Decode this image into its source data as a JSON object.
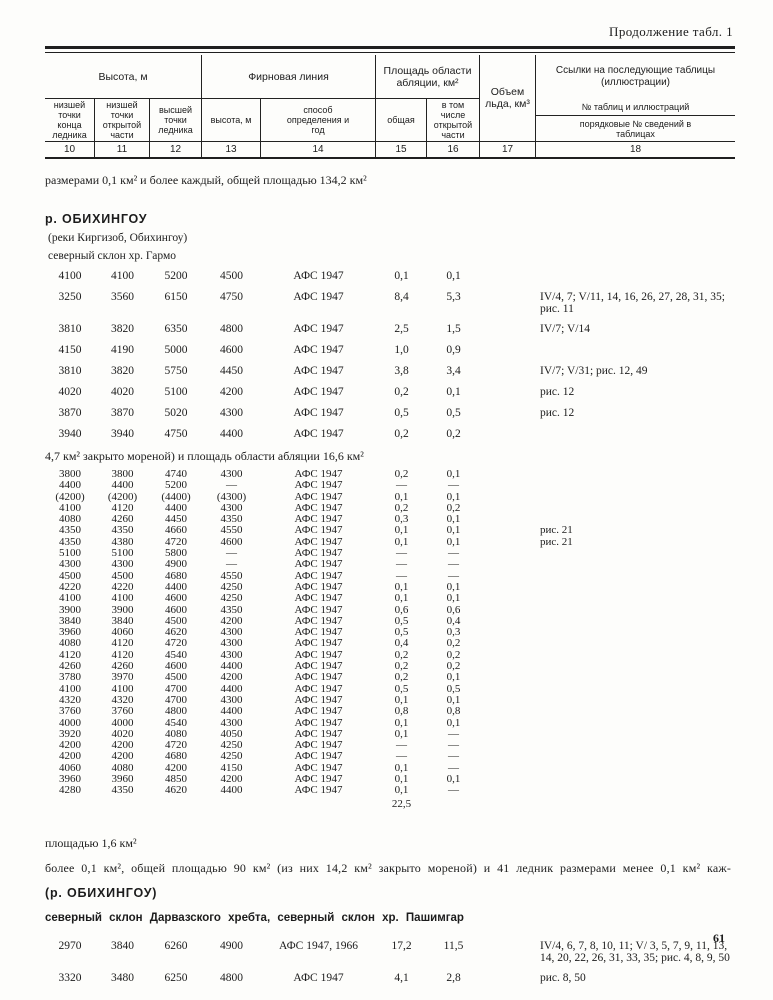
{
  "meta": {
    "continuation_label": "Продолжение табл. 1",
    "page_number": "61"
  },
  "header": {
    "groups": {
      "height": "Высота, м",
      "firn_line": "Фирновая линия",
      "ablation_area": "Площадь области абляции, км²",
      "ice_volume": "Объем льда, км³",
      "references": "Ссылки на последующие таблицы (иллюстрации)",
      "references_sub1": "№ таблиц и иллюстраций",
      "references_sub2": "порядковые № сведений в таблицах"
    },
    "subcolumns": [
      {
        "label": "низшей точки конца ледника"
      },
      {
        "label": "низшей точки открытой части"
      },
      {
        "label": "высшей точки ледника"
      },
      {
        "label": "высота, м"
      },
      {
        "label": "способ определения и год"
      },
      {
        "label": "общая"
      },
      {
        "label": "в том числе открытой части"
      }
    ],
    "column_numbers": [
      "10",
      "11",
      "12",
      "13",
      "14",
      "15",
      "16",
      "17",
      "18"
    ]
  },
  "body": [
    {
      "type": "text",
      "text": "размерами 0,1 км² и более каждый, общей площадью 134,2 км²"
    },
    {
      "type": "heading",
      "text": "р. ОБИХИНГОУ"
    },
    {
      "type": "subtext",
      "text": "(реки Киргизоб, Обихингоу)"
    },
    {
      "type": "subtext",
      "text": "северный склон хр. Гармо"
    },
    {
      "type": "row",
      "spacing": "wide",
      "cells": [
        "4100",
        "4100",
        "5200",
        "4500",
        "АФС 1947",
        "0,1",
        "0,1"
      ],
      "refs": ""
    },
    {
      "type": "row",
      "spacing": "wide",
      "cells": [
        "3250",
        "3560",
        "6150",
        "4750",
        "АФС 1947",
        "8,4",
        "5,3"
      ],
      "refs": "IV/4, 7; V/11, 14, 16, 26, 27, 28, 31, 35; рис. 11"
    },
    {
      "type": "row",
      "spacing": "wide",
      "cells": [
        "3810",
        "3820",
        "6350",
        "4800",
        "АФС 1947",
        "2,5",
        "1,5"
      ],
      "refs": "IV/7; V/14"
    },
    {
      "type": "row",
      "spacing": "wide",
      "cells": [
        "4150",
        "4190",
        "5000",
        "4600",
        "АФС 1947",
        "1,0",
        "0,9"
      ],
      "refs": ""
    },
    {
      "type": "row",
      "spacing": "wide",
      "cells": [
        "3810",
        "3820",
        "5750",
        "4450",
        "АФС 1947",
        "3,8",
        "3,4"
      ],
      "refs": "IV/7; V/31; рис. 12, 49"
    },
    {
      "type": "row",
      "spacing": "wide",
      "cells": [
        "4020",
        "4020",
        "5100",
        "4200",
        "АФС 1947",
        "0,2",
        "0,1"
      ],
      "refs": "рис. 12"
    },
    {
      "type": "row",
      "spacing": "wide",
      "cells": [
        "3870",
        "3870",
        "5020",
        "4300",
        "АФС 1947",
        "0,5",
        "0,5"
      ],
      "refs": "рис. 12"
    },
    {
      "type": "row",
      "spacing": "wide",
      "cells": [
        "3940",
        "3940",
        "4750",
        "4400",
        "АФС 1947",
        "0,2",
        "0,2"
      ],
      "refs": ""
    },
    {
      "type": "text",
      "text": "4,7 км² закрыто мореной) и площадь области абляции 16,6 км²"
    },
    {
      "type": "row",
      "spacing": "tight",
      "cells": [
        "3800",
        "3800",
        "4740",
        "4300",
        "АФС 1947",
        "0,2",
        "0,1"
      ],
      "refs": ""
    },
    {
      "type": "row",
      "spacing": "tight",
      "cells": [
        "4400",
        "4400",
        "5200",
        "—",
        "АФС 1947",
        "—",
        "—"
      ],
      "refs": ""
    },
    {
      "type": "row",
      "spacing": "tight",
      "cells": [
        "(4200)",
        "(4200)",
        "(4400)",
        "(4300)",
        "АФС 1947",
        "0,1",
        "0,1"
      ],
      "refs": ""
    },
    {
      "type": "row",
      "spacing": "tight",
      "cells": [
        "4100",
        "4120",
        "4400",
        "4300",
        "АФС 1947",
        "0,2",
        "0,2"
      ],
      "refs": ""
    },
    {
      "type": "row",
      "spacing": "tight",
      "cells": [
        "4080",
        "4260",
        "4450",
        "4350",
        "АФС 1947",
        "0,3",
        "0,1"
      ],
      "refs": ""
    },
    {
      "type": "row",
      "spacing": "tight",
      "cells": [
        "4350",
        "4350",
        "4660",
        "4550",
        "АФС 1947",
        "0,1",
        "0,1"
      ],
      "refs": "рис. 21"
    },
    {
      "type": "row",
      "spacing": "tight",
      "cells": [
        "4350",
        "4380",
        "4720",
        "4600",
        "АФС 1947",
        "0,1",
        "0,1"
      ],
      "refs": "рис. 21"
    },
    {
      "type": "row",
      "spacing": "tight",
      "cells": [
        "5100",
        "5100",
        "5800",
        "—",
        "АФС 1947",
        "—",
        "—"
      ],
      "refs": ""
    },
    {
      "type": "row",
      "spacing": "tight",
      "cells": [
        "4300",
        "4300",
        "4900",
        "—",
        "АФС 1947",
        "—",
        "—"
      ],
      "refs": ""
    },
    {
      "type": "row",
      "spacing": "tight",
      "cells": [
        "4500",
        "4500",
        "4680",
        "4550",
        "АФС 1947",
        "—",
        "—"
      ],
      "refs": ""
    },
    {
      "type": "row",
      "spacing": "tight",
      "cells": [
        "4220",
        "4220",
        "4400",
        "4250",
        "АФС 1947",
        "0,1",
        "0,1"
      ],
      "refs": ""
    },
    {
      "type": "row",
      "spacing": "tight",
      "cells": [
        "4100",
        "4100",
        "4600",
        "4250",
        "АФС 1947",
        "0,1",
        "0,1"
      ],
      "refs": ""
    },
    {
      "type": "row",
      "spacing": "tight",
      "cells": [
        "3900",
        "3900",
        "4600",
        "4350",
        "АФС 1947",
        "0,6",
        "0,6"
      ],
      "refs": ""
    },
    {
      "type": "row",
      "spacing": "tight",
      "cells": [
        "3840",
        "3840",
        "4500",
        "4200",
        "АФС 1947",
        "0,5",
        "0,4"
      ],
      "refs": ""
    },
    {
      "type": "row",
      "spacing": "tight",
      "cells": [
        "3960",
        "4060",
        "4620",
        "4300",
        "АФС 1947",
        "0,5",
        "0,3"
      ],
      "refs": ""
    },
    {
      "type": "row",
      "spacing": "tight",
      "cells": [
        "4080",
        "4120",
        "4720",
        "4300",
        "АФС 1947",
        "0,4",
        "0,2"
      ],
      "refs": ""
    },
    {
      "type": "row",
      "spacing": "tight",
      "cells": [
        "4120",
        "4120",
        "4540",
        "4300",
        "АФС 1947",
        "0,2",
        "0,2"
      ],
      "refs": ""
    },
    {
      "type": "row",
      "spacing": "tight",
      "cells": [
        "4260",
        "4260",
        "4600",
        "4400",
        "АФС 1947",
        "0,2",
        "0,2"
      ],
      "refs": ""
    },
    {
      "type": "row",
      "spacing": "tight",
      "cells": [
        "3780",
        "3970",
        "4500",
        "4200",
        "АФС 1947",
        "0,2",
        "0,1"
      ],
      "refs": ""
    },
    {
      "type": "row",
      "spacing": "tight",
      "cells": [
        "4100",
        "4100",
        "4700",
        "4400",
        "АФС 1947",
        "0,5",
        "0,5"
      ],
      "refs": ""
    },
    {
      "type": "row",
      "spacing": "tight",
      "cells": [
        "4320",
        "4320",
        "4700",
        "4300",
        "АФС 1947",
        "0,1",
        "0,1"
      ],
      "refs": ""
    },
    {
      "type": "row",
      "spacing": "tight",
      "cells": [
        "3760",
        "3760",
        "4800",
        "4400",
        "АФС 1947",
        "0,8",
        "0,8"
      ],
      "refs": ""
    },
    {
      "type": "row",
      "spacing": "tight",
      "cells": [
        "4000",
        "4000",
        "4540",
        "4300",
        "АФС 1947",
        "0,1",
        "0,1"
      ],
      "refs": ""
    },
    {
      "type": "row",
      "spacing": "tight",
      "cells": [
        "3920",
        "4020",
        "4080",
        "4050",
        "АФС 1947",
        "0,1",
        "—"
      ],
      "refs": ""
    },
    {
      "type": "row",
      "spacing": "tight",
      "cells": [
        "4200",
        "4200",
        "4720",
        "4250",
        "АФС 1947",
        "—",
        "—"
      ],
      "refs": ""
    },
    {
      "type": "row",
      "spacing": "tight",
      "cells": [
        "4200",
        "4200",
        "4680",
        "4250",
        "АФС 1947",
        "—",
        "—"
      ],
      "refs": ""
    },
    {
      "type": "row",
      "spacing": "tight",
      "cells": [
        "4060",
        "4080",
        "4200",
        "4150",
        "АФС 1947",
        "0,1",
        "—"
      ],
      "refs": ""
    },
    {
      "type": "row",
      "spacing": "tight",
      "cells": [
        "3960",
        "3960",
        "4850",
        "4200",
        "АФС 1947",
        "0,1",
        "0,1"
      ],
      "refs": ""
    },
    {
      "type": "row",
      "spacing": "tight",
      "cells": [
        "4280",
        "4350",
        "4620",
        "4400",
        "АФС 1947",
        "0,1",
        "—"
      ],
      "refs": ""
    },
    {
      "type": "total",
      "value": "22,5"
    },
    {
      "type": "text",
      "text": "площадью 1,6 км²"
    },
    {
      "type": "text",
      "text": "более 0,1 км², общей площадью 90 км² (из них 14,2 км² закрыто мореной) и 41 ледник размерами менее 0,1 км² каж-"
    },
    {
      "type": "heading",
      "text": "(р. ОБИХИНГОУ)"
    },
    {
      "type": "heading2",
      "text": "северный склон Дарвазского хребта, северный склон хр. Пашимгар"
    },
    {
      "type": "row",
      "spacing": "wide",
      "cells": [
        "2970",
        "3840",
        "6260",
        "4900",
        "АФС 1947, 1966",
        "17,2",
        "11,5"
      ],
      "refs": "IV/4, 6, 7, 8, 10, 11; V/ 3, 5, 7, 9, 11, 13, 14, 20, 22, 26, 31, 33, 35; рис. 4, 8, 9, 50"
    },
    {
      "type": "row",
      "spacing": "wide",
      "cells": [
        "3320",
        "3480",
        "6250",
        "4800",
        "АФС 1947",
        "4,1",
        "2,8"
      ],
      "refs": "рис. 8, 50"
    }
  ]
}
